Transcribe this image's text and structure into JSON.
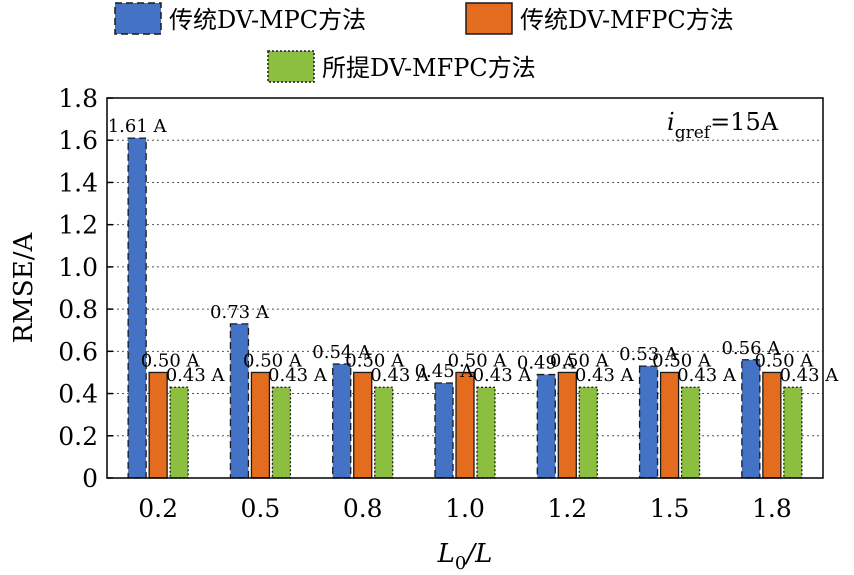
{
  "chart_data": {
    "type": "bar",
    "title": "",
    "xlabel": "L0/L",
    "xlabel_main": "L",
    "xlabel_sub": "0",
    "xlabel_tail": "/L",
    "ylabel": "RMSE/A",
    "ylim": [
      0,
      1.8
    ],
    "yticks": [
      "0",
      "0.2",
      "0.4",
      "0.6",
      "0.8",
      "1.0",
      "1.2",
      "1.4",
      "1.6",
      "1.8"
    ],
    "categories": [
      "0.2",
      "0.5",
      "0.8",
      "1.0",
      "1.2",
      "1.5",
      "1.8"
    ],
    "grid": "horizontal dotted",
    "legend_position": "top",
    "annotation": {
      "text": "igref=15A",
      "main": "i",
      "sub": "gref",
      "tail": "=15A"
    },
    "series": [
      {
        "name": "传统DV-MPC方法",
        "color": "#4472c4",
        "border": "dashed",
        "values": [
          1.61,
          0.73,
          0.54,
          0.45,
          0.49,
          0.53,
          0.56
        ],
        "labels": [
          "1.61 A",
          "0.73 A",
          "0.54 A",
          "0.45 A",
          "0.49 A",
          "0.53 A",
          "0.56 A"
        ]
      },
      {
        "name": "传统DV-MFPC方法",
        "color": "#e46c1e",
        "border": "solid",
        "values": [
          0.5,
          0.5,
          0.5,
          0.5,
          0.5,
          0.5,
          0.5
        ],
        "labels": [
          "0.50 A",
          "0.50 A",
          "0.50 A",
          "0.50 A",
          "0.50 A",
          "0.50 A",
          "0.50 A"
        ]
      },
      {
        "name": "所提DV-MFPC方法",
        "color": "#8cbf3f",
        "border": "dotted",
        "values": [
          0.43,
          0.43,
          0.43,
          0.43,
          0.43,
          0.43,
          0.43
        ],
        "labels": [
          "0.43 A",
          "0.43 A",
          "0.43 A",
          "0.43 A",
          "0.43 A",
          "0.43 A",
          "0.43 A"
        ]
      }
    ]
  }
}
